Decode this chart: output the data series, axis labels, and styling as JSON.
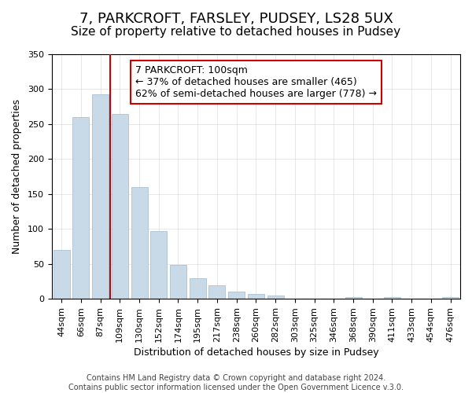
{
  "title": "7, PARKCROFT, FARSLEY, PUDSEY, LS28 5UX",
  "subtitle": "Size of property relative to detached houses in Pudsey",
  "xlabel": "Distribution of detached houses by size in Pudsey",
  "ylabel": "Number of detached properties",
  "categories": [
    "44sqm",
    "66sqm",
    "87sqm",
    "109sqm",
    "130sqm",
    "152sqm",
    "174sqm",
    "195sqm",
    "217sqm",
    "238sqm",
    "260sqm",
    "282sqm",
    "303sqm",
    "325sqm",
    "346sqm",
    "368sqm",
    "390sqm",
    "411sqm",
    "433sqm",
    "454sqm",
    "476sqm"
  ],
  "values": [
    70,
    260,
    293,
    265,
    160,
    97,
    49,
    29,
    19,
    10,
    7,
    5,
    0,
    0,
    0,
    3,
    0,
    2,
    0,
    0,
    2
  ],
  "bar_color": "#c8d9e8",
  "bar_edge_color": "#a0b8cc",
  "vline_pos": 2.5,
  "vline_color": "#cc0000",
  "annotation_title": "7 PARKCROFT: 100sqm",
  "annotation_line1": "← 37% of detached houses are smaller (465)",
  "annotation_line2": "62% of semi-detached houses are larger (778) →",
  "annotation_box_color": "#ffffff",
  "annotation_box_edge": "#cc0000",
  "ylim": [
    0,
    350
  ],
  "yticks": [
    0,
    50,
    100,
    150,
    200,
    250,
    300,
    350
  ],
  "footer1": "Contains HM Land Registry data © Crown copyright and database right 2024.",
  "footer2": "Contains public sector information licensed under the Open Government Licence v.3.0.",
  "title_fontsize": 13,
  "subtitle_fontsize": 11,
  "axis_label_fontsize": 9,
  "tick_fontsize": 8,
  "annotation_fontsize": 9,
  "footer_fontsize": 7
}
